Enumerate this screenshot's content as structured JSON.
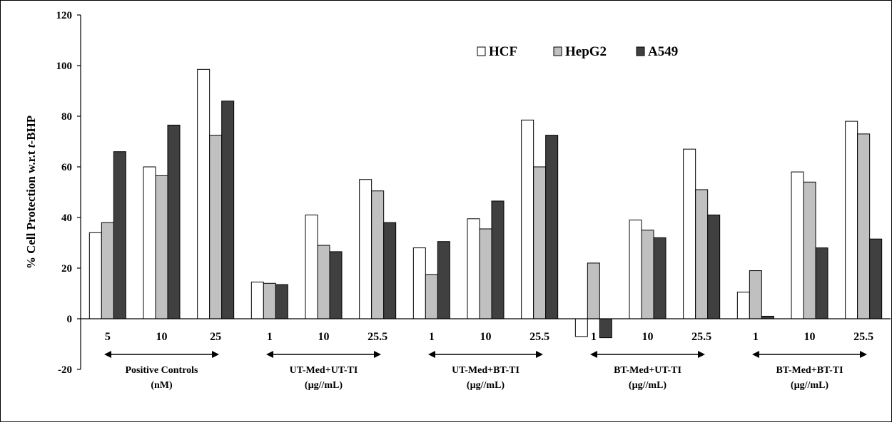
{
  "chart_data": {
    "type": "bar",
    "ylabel": "% Cell Protection w.r.t ",
    "ylabel_italic": "t",
    "ylabel_suffix": "-BHP",
    "ylim": [
      -20,
      120
    ],
    "yticks": [
      "-20",
      "0",
      "20",
      "40",
      "60",
      "80",
      "100",
      "120"
    ],
    "legend_position": "top-right",
    "categories": [
      "5",
      "10",
      "25",
      "1",
      "10",
      "25.5",
      "1",
      "10",
      "25.5",
      "1",
      "10",
      "25.5",
      "1",
      "10",
      "25.5"
    ],
    "groups": [
      {
        "line1": "Positive Controls",
        "line2": "(nM)"
      },
      {
        "line1": "UT-Med+UT-TI",
        "line2": "(µg//mL)"
      },
      {
        "line1": "UT-Med+BT-TI",
        "line2": "(µg//mL)"
      },
      {
        "line1": "BT-Med+UT-TI",
        "line2": "(µg//mL)"
      },
      {
        "line1": "BT-Med+BT-TI",
        "line2": "(µg//mL)"
      }
    ],
    "series": [
      {
        "name": "HCF",
        "color": "#ffffff",
        "values": [
          34,
          60,
          98.5,
          14.5,
          41,
          55,
          28,
          39.5,
          78.5,
          -7,
          39,
          67,
          10.5,
          58,
          78
        ]
      },
      {
        "name": "HepG2",
        "color": "#c0c0c0",
        "values": [
          38,
          56.5,
          72.5,
          14,
          29,
          50.5,
          17.5,
          35.5,
          60,
          22,
          35,
          51,
          19,
          54,
          73
        ]
      },
      {
        "name": "A549",
        "color": "#404040",
        "values": [
          66,
          76.5,
          86,
          13.5,
          26.5,
          38,
          30.5,
          46.5,
          72.5,
          -7.5,
          32,
          41,
          1,
          28,
          31.5
        ]
      }
    ]
  }
}
